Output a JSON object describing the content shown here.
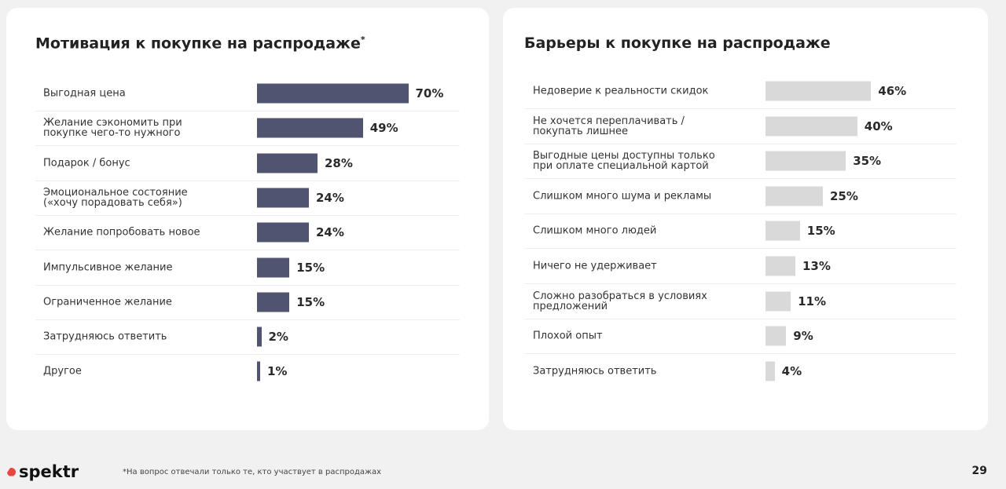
{
  "chart_data": [
    {
      "type": "bar",
      "orientation": "horizontal",
      "title": "Мотивация к покупке на распродаже",
      "title_mark": "*",
      "color": "#515470",
      "unit": "%",
      "scale_max": 100,
      "categories": [
        "Выгодная цена",
        "Желание сэкономить при покупке чего-то нужного",
        "Подарок / бонус",
        "Эмоциональное состояние («хочу порадовать себя»)",
        "Желание попробовать новое",
        "Импульсивное желание",
        "Ограниченное желание",
        "Затрудняюсь ответить",
        "Другое"
      ],
      "values": [
        70,
        49,
        28,
        24,
        24,
        15,
        15,
        2,
        1
      ],
      "labels": [
        "70%",
        "49%",
        "28%",
        "24%",
        "24%",
        "15%",
        "15%",
        "2%",
        "1%"
      ]
    },
    {
      "type": "bar",
      "orientation": "horizontal",
      "title": "Барьеры к покупке на распродаже",
      "color": "#d9d9d9",
      "unit": "%",
      "scale_max": 100,
      "categories": [
        "Недоверие к реальности скидок",
        "Не хочется переплачивать / покупать лишнее",
        "Выгодные цены доступны только при оплате специальной картой",
        "Слишком много шума и рекламы",
        "Слишком много людей",
        "Ничего не удерживает",
        "Сложно разобраться в условиях предложений",
        "Плохой опыт",
        "Затрудняюсь ответить"
      ],
      "values": [
        46,
        40,
        35,
        25,
        15,
        13,
        11,
        9,
        4
      ],
      "labels": [
        "46%",
        "40%",
        "35%",
        "25%",
        "15%",
        "13%",
        "11%",
        "9%",
        "4%"
      ]
    }
  ],
  "footer": {
    "logo": "spektr",
    "footnote": "*На вопрос отвечали только те, кто участвует в распродажах",
    "page": "29"
  }
}
